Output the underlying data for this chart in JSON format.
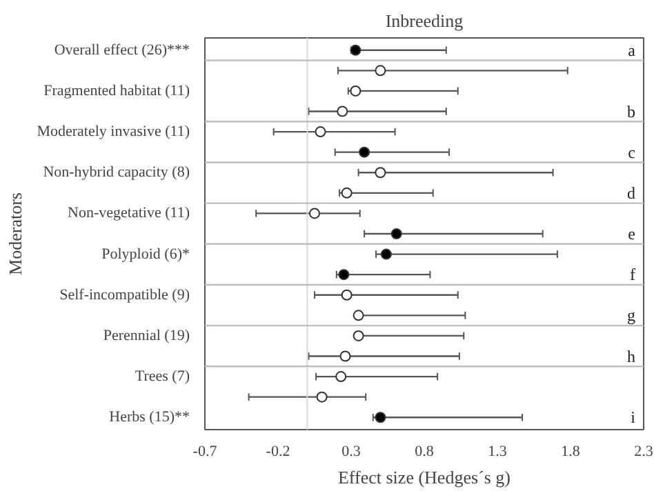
{
  "chart_data": {
    "type": "scatter",
    "orientation": "horizontal",
    "title": "Inbreeding",
    "xlabel": "Effect size (Hedges´s g)",
    "ylabel": "Moderators",
    "xlim": [
      -0.7,
      2.3
    ],
    "xticks": [
      -0.7,
      -0.2,
      0.3,
      0.8,
      1.3,
      1.8,
      2.3
    ],
    "categories": [
      "Overall effect (26)***",
      null,
      "Fragmented habitat (11)",
      null,
      "Moderately invasive (11)",
      null,
      "Non-hybrid capacity (8)",
      null,
      "Non-vegetative (11)",
      null,
      "Polyploid (6)*",
      null,
      "Self-incompatible (9)",
      null,
      "Perennial (19)",
      null,
      "Trees (7)",
      null,
      "Herbs (15)**"
    ],
    "marker": "circle",
    "series": [
      {
        "color": "#000000",
        "values": [
          0.33,
          null,
          null,
          null,
          null,
          0.39,
          null,
          null,
          null,
          0.61,
          0.54,
          0.25,
          null,
          null,
          null,
          null,
          null,
          null,
          0.5
        ],
        "errors": [
          [
            0.3,
            0.95
          ],
          null,
          null,
          null,
          null,
          [
            0.19,
            0.97
          ],
          null,
          null,
          null,
          [
            0.39,
            1.61
          ],
          [
            0.47,
            1.71
          ],
          [
            0.2,
            0.84
          ],
          null,
          null,
          null,
          null,
          null,
          null,
          [
            0.45,
            1.47
          ]
        ]
      },
      {
        "color": "#ffffff",
        "values": [
          null,
          0.5,
          0.33,
          0.24,
          0.09,
          null,
          0.5,
          0.27,
          0.05,
          null,
          null,
          null,
          0.27,
          0.35,
          0.35,
          0.26,
          0.23,
          0.1,
          null
        ],
        "errors": [
          null,
          [
            0.21,
            1.78
          ],
          [
            0.28,
            1.03
          ],
          [
            0.01,
            0.95
          ],
          [
            -0.23,
            0.6
          ],
          null,
          [
            0.35,
            1.68
          ],
          [
            0.22,
            0.86
          ],
          [
            -0.35,
            0.36
          ],
          null,
          null,
          null,
          [
            0.05,
            1.03
          ],
          [
            0.35,
            1.08
          ],
          [
            0.35,
            1.07
          ],
          [
            0.01,
            1.04
          ],
          [
            0.06,
            0.89
          ],
          [
            -0.4,
            0.4
          ],
          null
        ]
      }
    ],
    "ref_lines": [
      {
        "axis": "x",
        "value": 0,
        "color": "#d9d9d9"
      }
    ],
    "annotations": [
      "a",
      "b",
      "c",
      "d",
      "e",
      "f",
      "g",
      "h",
      "i"
    ]
  }
}
